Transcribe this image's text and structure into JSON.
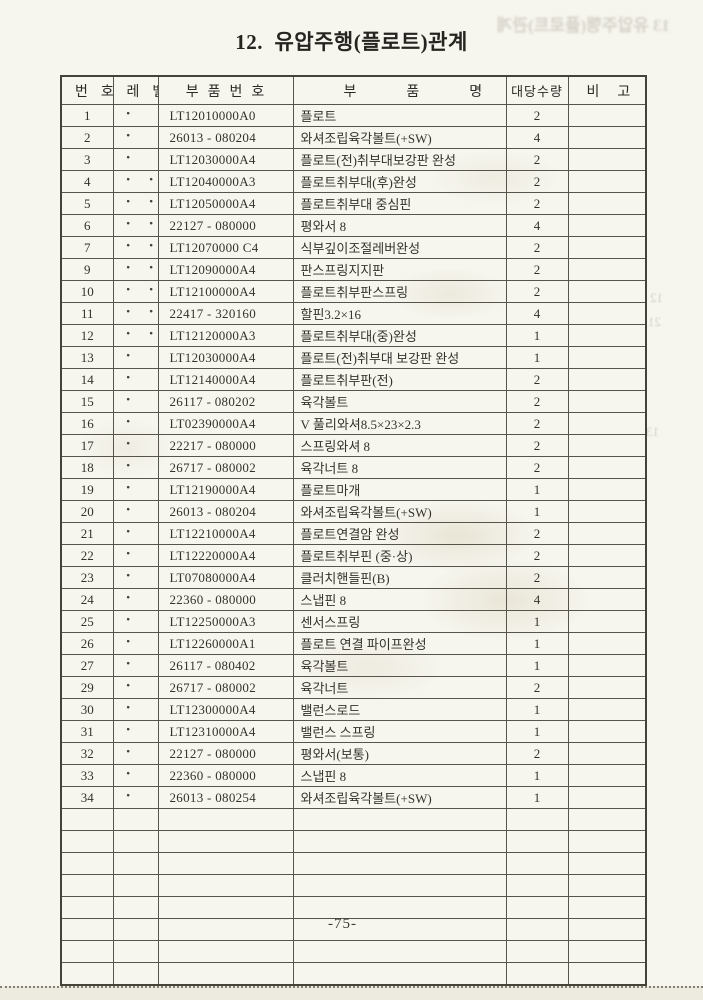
{
  "page": {
    "title": "12.  유압주행(플로트)관계",
    "page_number": "-75-"
  },
  "table": {
    "headers": [
      "번호",
      "레벨",
      "부품번호",
      "부품명",
      "대당수량",
      "비고"
    ],
    "columns": [
      "no",
      "level",
      "part_no",
      "name",
      "qty",
      "remark"
    ],
    "rows": [
      {
        "no": "1",
        "level": 1,
        "part_no": "LT12010000A0",
        "name": "플로트",
        "qty": "2",
        "remark": ""
      },
      {
        "no": "2",
        "level": 1,
        "part_no": "26013 - 080204",
        "name": "와셔조립육각볼트(+SW)",
        "qty": "4",
        "remark": ""
      },
      {
        "no": "3",
        "level": 1,
        "part_no": "LT12030000A4",
        "name": "플로트(전)취부대보강판 완성",
        "qty": "2",
        "remark": ""
      },
      {
        "no": "4",
        "level": 2,
        "part_no": "LT12040000A3",
        "name": "플로트취부대(후)완성",
        "qty": "2",
        "remark": ""
      },
      {
        "no": "5",
        "level": 2,
        "part_no": "LT12050000A4",
        "name": "플로트취부대 중심핀",
        "qty": "2",
        "remark": ""
      },
      {
        "no": "6",
        "level": 2,
        "part_no": "22127 - 080000",
        "name": "평와서 8",
        "qty": "4",
        "remark": ""
      },
      {
        "no": "7",
        "level": 2,
        "part_no": "LT12070000 C4",
        "name": "식부깊이조절레버완성",
        "qty": "2",
        "remark": ""
      },
      {
        "no": "9",
        "level": 2,
        "part_no": "LT12090000A4",
        "name": "판스프링지지판",
        "qty": "2",
        "remark": ""
      },
      {
        "no": "10",
        "level": 2,
        "part_no": "LT12100000A4",
        "name": "플로트취부판스프링",
        "qty": "2",
        "remark": ""
      },
      {
        "no": "11",
        "level": 2,
        "part_no": "22417 - 320160",
        "name": "할핀3.2×16",
        "qty": "4",
        "remark": ""
      },
      {
        "no": "12",
        "level": 2,
        "part_no": "LT12120000A3",
        "name": "플로트취부대(중)완성",
        "qty": "1",
        "remark": ""
      },
      {
        "no": "13",
        "level": 1,
        "part_no": "LT12030000A4",
        "name": "플로트(전)취부대 보강판 완성",
        "qty": "1",
        "remark": ""
      },
      {
        "no": "14",
        "level": 1,
        "part_no": "LT12140000A4",
        "name": "플로트취부판(전)",
        "qty": "2",
        "remark": ""
      },
      {
        "no": "15",
        "level": 1,
        "part_no": "26117 - 080202",
        "name": "육각볼트",
        "qty": "2",
        "remark": ""
      },
      {
        "no": "16",
        "level": 1,
        "part_no": "LT02390000A4",
        "name": "V 풀리와셔8.5×23×2.3",
        "qty": "2",
        "remark": ""
      },
      {
        "no": "17",
        "level": 1,
        "part_no": "22217 - 080000",
        "name": "스프링와셔 8",
        "qty": "2",
        "remark": ""
      },
      {
        "no": "18",
        "level": 1,
        "part_no": "26717 - 080002",
        "name": "육각너트 8",
        "qty": "2",
        "remark": ""
      },
      {
        "no": "19",
        "level": 1,
        "part_no": "LT12190000A4",
        "name": "플로트마개",
        "qty": "1",
        "remark": ""
      },
      {
        "no": "20",
        "level": 1,
        "part_no": "26013 - 080204",
        "name": "와셔조립육각볼트(+SW)",
        "qty": "1",
        "remark": ""
      },
      {
        "no": "21",
        "level": 1,
        "part_no": "LT12210000A4",
        "name": "플로트연결암 완성",
        "qty": "2",
        "remark": ""
      },
      {
        "no": "22",
        "level": 1,
        "part_no": "LT12220000A4",
        "name": "플로트취부핀 (중·상)",
        "qty": "2",
        "remark": ""
      },
      {
        "no": "23",
        "level": 1,
        "part_no": "LT07080000A4",
        "name": "클러치핸들핀(B)",
        "qty": "2",
        "remark": ""
      },
      {
        "no": "24",
        "level": 1,
        "part_no": "22360 - 080000",
        "name": "스냅핀 8",
        "qty": "4",
        "remark": ""
      },
      {
        "no": "25",
        "level": 1,
        "part_no": "LT12250000A3",
        "name": "센서스프링",
        "qty": "1",
        "remark": ""
      },
      {
        "no": "26",
        "level": 1,
        "part_no": "LT12260000A1",
        "name": "플로트 연결 파이프완성",
        "qty": "1",
        "remark": ""
      },
      {
        "no": "27",
        "level": 1,
        "part_no": "26117 - 080402",
        "name": "육각볼트",
        "qty": "1",
        "remark": ""
      },
      {
        "no": "29",
        "level": 1,
        "part_no": "26717 - 080002",
        "name": "육각너트",
        "qty": "2",
        "remark": ""
      },
      {
        "no": "30",
        "level": 1,
        "part_no": "LT12300000A4",
        "name": "밸런스로드",
        "qty": "1",
        "remark": ""
      },
      {
        "no": "31",
        "level": 1,
        "part_no": "LT12310000A4",
        "name": "밸런스 스프링",
        "qty": "1",
        "remark": ""
      },
      {
        "no": "32",
        "level": 1,
        "part_no": "22127 - 080000",
        "name": "평와서(보통)",
        "qty": "2",
        "remark": ""
      },
      {
        "no": "33",
        "level": 1,
        "part_no": "22360 - 080000",
        "name": "스냅핀 8",
        "qty": "1",
        "remark": ""
      },
      {
        "no": "34",
        "level": 1,
        "part_no": "26013 - 080254",
        "name": "와셔조립육각볼트(+SW)",
        "qty": "1",
        "remark": ""
      }
    ],
    "empty_row_count": 8
  },
  "artifacts": {
    "bleed_title": "13 유압주행(플로트)관계",
    "margin_marks": [
      "12",
      "21",
      "13"
    ]
  },
  "colors": {
    "paper": "#f6f5ee",
    "table_line": "#57544b",
    "text": "#34322c"
  }
}
